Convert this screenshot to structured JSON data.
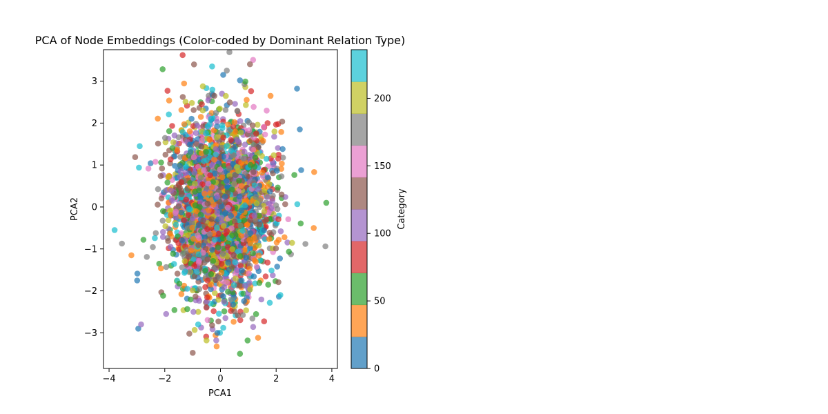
{
  "chart_data": {
    "type": "scatter",
    "title": "PCA of Node Embeddings (Color-coded by Dominant Relation Type)",
    "xlabel": "PCA1",
    "ylabel": "PCA2",
    "xlim": [
      -4.2,
      4.2
    ],
    "ylim": [
      -3.85,
      3.75
    ],
    "xticks": [
      -4,
      -2,
      0,
      2,
      4
    ],
    "yticks": [
      -3,
      -2,
      -1,
      0,
      1,
      2,
      3
    ],
    "xtick_labels": [
      "−4",
      "−2",
      "0",
      "2",
      "4"
    ],
    "ytick_labels": [
      "−3",
      "−2",
      "−1",
      "0",
      "1",
      "2",
      "3"
    ],
    "grid": false,
    "legend": "none",
    "point_alpha": 0.7,
    "colormap": "tab10",
    "color_range": [
      0,
      236
    ],
    "colorbar": {
      "label": "Category",
      "ticks": [
        0,
        50,
        100,
        150,
        200
      ],
      "tick_labels": [
        "0",
        "50",
        "100",
        "150",
        "200"
      ],
      "colors": [
        "#1f77b4",
        "#ff7f0e",
        "#2ca02c",
        "#d62728",
        "#9467bd",
        "#8c564b",
        "#e377c2",
        "#7f7f7f",
        "#bcbd22",
        "#17becf"
      ]
    },
    "series": [
      {
        "note_points": "dense cloud of ~5000 points centred near (0,0), roughly normal with std ~0.9 in x and ~1.05 in y",
        "outliers": [
          {
            "x": -3.8,
            "y": -0.55,
            "c": 230
          },
          {
            "x": -3.2,
            "y": -1.15,
            "c": 35
          },
          {
            "x": -2.95,
            "y": -2.9,
            "c": 5
          },
          {
            "x": -2.85,
            "y": -2.8,
            "c": 110
          },
          {
            "x": -2.9,
            "y": 1.45,
            "c": 230
          },
          {
            "x": -0.95,
            "y": 3.4,
            "c": 130
          },
          {
            "x": -0.3,
            "y": 3.35,
            "c": 230
          },
          {
            "x": 0.1,
            "y": 3.15,
            "c": 5
          },
          {
            "x": 0.7,
            "y": 3.02,
            "c": 5
          },
          {
            "x": 2.75,
            "y": 2.82,
            "c": 5
          },
          {
            "x": 1.8,
            "y": 2.65,
            "c": 35
          },
          {
            "x": -1.9,
            "y": 2.77,
            "c": 80
          },
          {
            "x": 3.8,
            "y": 0.1,
            "c": 60
          },
          {
            "x": 3.35,
            "y": -0.5,
            "c": 35
          },
          {
            "x": 3.05,
            "y": -0.88,
            "c": 180
          },
          {
            "x": 2.9,
            "y": 0.88,
            "c": 5
          },
          {
            "x": 2.85,
            "y": 1.85,
            "c": 5
          },
          {
            "x": 0.7,
            "y": -3.5,
            "c": 60
          },
          {
            "x": -0.5,
            "y": -3.18,
            "c": 210
          },
          {
            "x": -0.15,
            "y": -3.18,
            "c": 110
          },
          {
            "x": 1.35,
            "y": -3.12,
            "c": 35
          },
          {
            "x": -1.95,
            "y": -2.55,
            "c": 110
          },
          {
            "x": -0.8,
            "y": -2.8,
            "c": 230
          },
          {
            "x": 2.15,
            "y": -2.1,
            "c": 230
          }
        ]
      }
    ]
  }
}
